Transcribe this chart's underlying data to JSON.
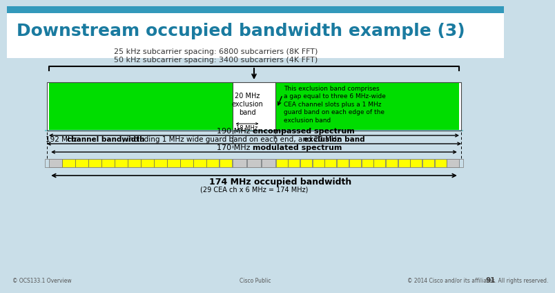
{
  "title": "Downstream occupied bandwidth example (3)",
  "title_color": "#1A7BA0",
  "title_bg": "#FFFFFF",
  "slide_bg_top": "#DAEEF3",
  "slide_bg": "#C9DEE8",
  "subtitle_line1": "25 kHz subcarrier spacing: 6800 subcarriers (8K FFT)",
  "subtitle_line2": "50 kHz subcarrier spacing: 3400 subcarriers (4K FFT)",
  "green_color": "#00DD00",
  "yellow_color": "#FFFF00",
  "gray_cell_color": "#C8C8C8",
  "annotation_text": "This exclusion band comprises\na gap equal to three 6 MHz-wide\nCEA channel slots plus a 1 MHz\nguard band on each edge of the\nexclusion band",
  "teal_line_color": "#7AC8D0",
  "footer_left": "© OCS133.1 Overview",
  "footer_center": "Cisco Public",
  "footer_right": "© 2014 Cisco and/or its affiliates. All rights reserved.",
  "page_num": "91"
}
